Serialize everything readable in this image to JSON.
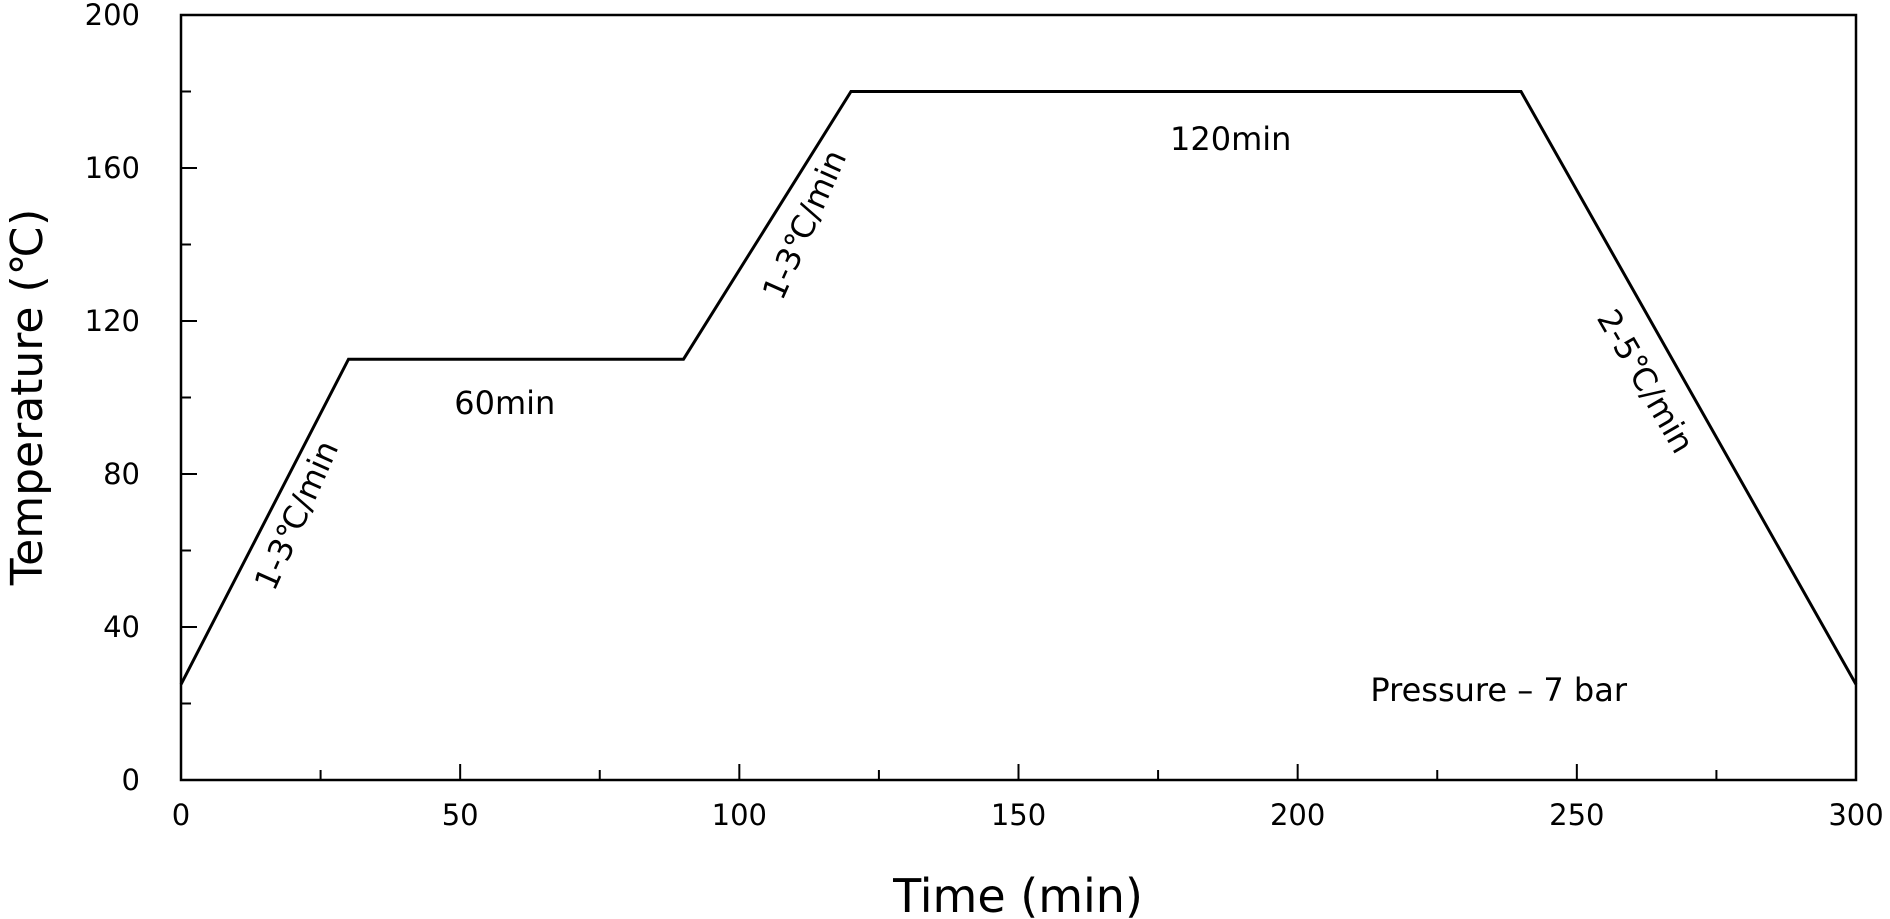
{
  "chart_data": {
    "type": "line",
    "xlabel": "Time (min)",
    "ylabel": "Temperature (℃)",
    "xlim": [
      0,
      300
    ],
    "ylim": [
      0,
      200
    ],
    "x_ticks": [
      0,
      50,
      100,
      150,
      200,
      250,
      300
    ],
    "y_ticks": [
      0,
      40,
      80,
      120,
      160,
      200
    ],
    "grid": false,
    "series": [
      {
        "x": [
          0,
          30,
          90,
          120,
          240,
          300
        ],
        "y": [
          25,
          110,
          110,
          180,
          180,
          25
        ]
      }
    ],
    "annotations": [
      {
        "text": "1-3℃/min",
        "x": 21,
        "y": 69
      },
      {
        "text": "60min",
        "x": 58,
        "y": 98
      },
      {
        "text": "1-3℃/min",
        "x": 112,
        "y": 145
      },
      {
        "text": "120min",
        "x": 188,
        "y": 167
      },
      {
        "text": "2-5℃/min",
        "x": 262,
        "y": 104
      },
      {
        "text": "Pressure – 7 bar",
        "x": 236,
        "y": 23
      }
    ]
  }
}
